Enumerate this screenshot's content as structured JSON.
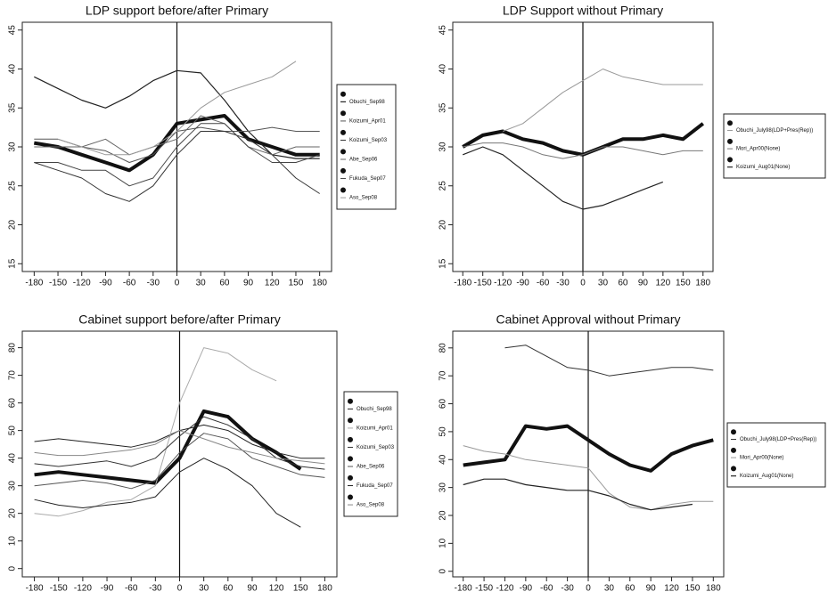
{
  "chart_data": [
    {
      "type": "line",
      "title": "LDP support before/after Primary",
      "x": [
        -180,
        -150,
        -120,
        -90,
        -60,
        -30,
        0,
        30,
        60,
        90,
        120,
        150,
        180
      ],
      "xlim": [
        -195,
        195
      ],
      "xticks": [
        -180,
        -150,
        -120,
        -90,
        -60,
        -30,
        0,
        30,
        60,
        90,
        120,
        150,
        180
      ],
      "ylim": [
        14,
        46
      ],
      "yticks": [
        15,
        20,
        25,
        30,
        35,
        40,
        45
      ],
      "vline": 0,
      "series": [
        {
          "color": "#111",
          "width": 4,
          "values": [
            30.5,
            30,
            29,
            28,
            27,
            29,
            33,
            33.5,
            34,
            31,
            30,
            29,
            29
          ]
        },
        {
          "name": "Obuchi_Sep98",
          "color": "#222",
          "width": 1.2,
          "values": [
            39,
            37.5,
            36,
            35,
            36.5,
            38.5,
            39.8,
            39.5,
            36,
            32,
            29,
            28.5,
            28.5
          ]
        },
        {
          "name": "Koizumi_Apr01",
          "color": "#555",
          "width": 1,
          "values": [
            31,
            31,
            30,
            29.5,
            28,
            29,
            32,
            32.5,
            32,
            32,
            32.5,
            32,
            32
          ]
        },
        {
          "name": "Koizumi_Sep03",
          "color": "#333",
          "width": 1,
          "values": [
            28,
            27,
            26,
            24,
            23,
            25,
            29,
            32,
            32,
            31,
            29,
            26,
            24
          ]
        },
        {
          "name": "Abe_Sep06",
          "color": "#666",
          "width": 1,
          "values": [
            30,
            30,
            30,
            31,
            29,
            30,
            31,
            34,
            33,
            30,
            29,
            30,
            30
          ]
        },
        {
          "name": "Fukuda_Sep07",
          "color": "#444",
          "width": 1,
          "values": [
            28,
            28,
            27,
            27,
            25,
            26,
            30,
            33,
            33,
            30,
            28,
            28,
            29
          ]
        },
        {
          "name": "Aso_Sep08",
          "color": "#999",
          "width": 1,
          "values": [
            null,
            31,
            30,
            29,
            29,
            30,
            32,
            35,
            37,
            38,
            39,
            41,
            null
          ]
        }
      ]
    },
    {
      "type": "line",
      "title": "LDP Support without Primary",
      "x": [
        -180,
        -150,
        -120,
        -90,
        -60,
        -30,
        0,
        30,
        60,
        90,
        120,
        150,
        180
      ],
      "xlim": [
        -195,
        195
      ],
      "xticks": [
        -180,
        -150,
        -120,
        -90,
        -60,
        -30,
        0,
        30,
        60,
        90,
        120,
        150,
        180
      ],
      "ylim": [
        14,
        46
      ],
      "yticks": [
        15,
        20,
        25,
        30,
        35,
        40,
        45
      ],
      "vline": 0,
      "series": [
        {
          "color": "#111",
          "width": 4,
          "values": [
            30,
            31.5,
            32,
            31,
            30.5,
            29.5,
            29,
            30,
            31,
            31,
            31.5,
            31,
            33
          ]
        },
        {
          "name": "Obuchi_July98(LDP+Pres(Rep))",
          "color": "#999",
          "width": 1,
          "values": [
            null,
            null,
            32,
            33,
            35,
            37,
            38.5,
            40,
            39,
            38.5,
            38,
            38,
            38
          ]
        },
        {
          "name": "Mori_Apr00(None)",
          "color": "#777",
          "width": 1,
          "values": [
            30,
            30.5,
            30.5,
            30,
            29,
            28.5,
            29,
            30,
            30,
            29.5,
            29,
            29.5,
            29.5
          ]
        },
        {
          "name": "Koizumi_Aug01(None)",
          "color": "#222",
          "width": 1.2,
          "values": [
            29,
            30,
            29,
            27,
            25,
            23,
            22,
            22.5,
            23.5,
            24.5,
            25.5,
            null,
            null
          ]
        }
      ]
    },
    {
      "type": "line",
      "title": "Cabinet support before/after Primary",
      "x": [
        -180,
        -150,
        -120,
        -90,
        -60,
        -30,
        0,
        30,
        60,
        90,
        120,
        150,
        180
      ],
      "xlim": [
        -195,
        195
      ],
      "xticks": [
        -180,
        -150,
        -120,
        -90,
        -60,
        -30,
        0,
        30,
        60,
        90,
        120,
        150,
        180
      ],
      "ylim": [
        -3,
        86
      ],
      "yticks": [
        0,
        10,
        20,
        30,
        40,
        50,
        60,
        70,
        80
      ],
      "vline": 0,
      "series": [
        {
          "color": "#111",
          "width": 4,
          "values": [
            34,
            35,
            34,
            33,
            32,
            31,
            40,
            57,
            55,
            47,
            42,
            36,
            null
          ]
        },
        {
          "name": "Obuchi_Sep98",
          "color": "#222",
          "width": 1,
          "values": [
            46,
            47,
            46,
            45,
            44,
            46,
            50,
            52,
            50,
            45,
            42,
            40,
            40
          ]
        },
        {
          "name": "Koizumi_Apr01",
          "color": "#aaa",
          "width": 1,
          "values": [
            20,
            19,
            21,
            24,
            25,
            30,
            60,
            80,
            78,
            72,
            68,
            null,
            null
          ]
        },
        {
          "name": "Koizumi_Sep03",
          "color": "#333",
          "width": 1,
          "values": [
            38,
            37,
            38,
            39,
            37,
            40,
            48,
            55,
            52,
            47,
            40,
            37,
            36
          ]
        },
        {
          "name": "Abe_Sep06",
          "color": "#555",
          "width": 1,
          "values": [
            30,
            31,
            32,
            31,
            29,
            32,
            42,
            49,
            47,
            40,
            37,
            34,
            33
          ]
        },
        {
          "name": "Fukuda_Sep07",
          "color": "#222",
          "width": 1,
          "values": [
            25,
            23,
            22,
            23,
            24,
            26,
            35,
            40,
            36,
            30,
            20,
            15,
            null
          ]
        },
        {
          "name": "Aso_Sep08",
          "color": "#888",
          "width": 1,
          "values": [
            42,
            41,
            41,
            42,
            43,
            45,
            50,
            47,
            44,
            42,
            40,
            39,
            38
          ]
        }
      ]
    },
    {
      "type": "line",
      "title": "Cabinet Approval without Primary",
      "x": [
        -180,
        -150,
        -120,
        -90,
        -60,
        -30,
        0,
        30,
        60,
        90,
        120,
        150,
        180
      ],
      "xlim": [
        -195,
        195
      ],
      "xticks": [
        -180,
        -150,
        -120,
        -90,
        -60,
        -30,
        0,
        30,
        60,
        90,
        120,
        150,
        180
      ],
      "ylim": [
        -2,
        86
      ],
      "yticks": [
        0,
        10,
        20,
        30,
        40,
        50,
        60,
        70,
        80
      ],
      "vline": 0,
      "series": [
        {
          "color": "#111",
          "width": 4,
          "values": [
            38,
            39,
            40,
            52,
            51,
            52,
            47,
            42,
            38,
            36,
            42,
            45,
            47
          ]
        },
        {
          "name": "Obuchi_July98(LDP+Pres(Rep))",
          "color": "#333",
          "width": 1,
          "values": [
            null,
            null,
            80,
            81,
            77,
            73,
            72,
            70,
            71,
            72,
            73,
            73,
            72
          ]
        },
        {
          "name": "Mori_Apr00(None)",
          "color": "#999",
          "width": 1,
          "values": [
            45,
            43,
            42,
            40,
            39,
            38,
            37,
            28,
            23,
            22,
            24,
            25,
            25
          ]
        },
        {
          "name": "Koizumi_Aug01(None)",
          "color": "#222",
          "width": 1.2,
          "values": [
            31,
            33,
            33,
            31,
            30,
            29,
            29,
            27,
            24,
            22,
            23,
            24,
            null
          ]
        }
      ]
    }
  ]
}
